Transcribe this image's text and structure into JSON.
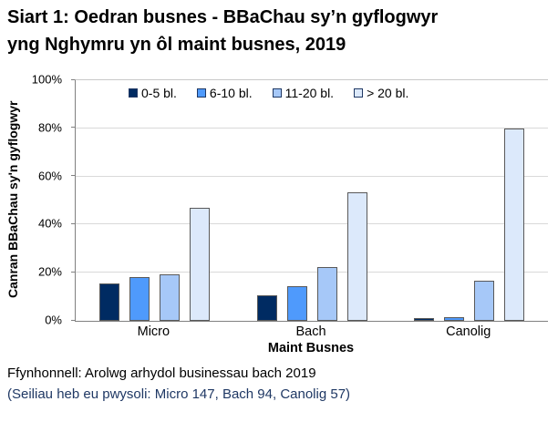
{
  "title": {
    "line1": "Siart 1: Oedran busnes - BBaChau sy’n gyflogwyr",
    "line2": "yng Nghymru yn ôl maint busnes, 2019"
  },
  "chart_data": {
    "type": "bar",
    "title": "Siart 1: Oedran busnes - BBaChau sy’n gyflogwyr yng Nghymru yn ôl maint busnes, 2019",
    "categories": [
      "Micro",
      "Bach",
      "Canolig"
    ],
    "series": [
      {
        "name": "0-5 bl.",
        "color": "#002b62",
        "values": [
          15.5,
          10.5,
          1
        ]
      },
      {
        "name": "6-10 bl.",
        "color": "#4f9afc",
        "values": [
          18,
          14.5,
          1.5
        ]
      },
      {
        "name": "11-20 bl.",
        "color": "#a6c8f8",
        "values": [
          19.5,
          22.5,
          16.5
        ]
      },
      {
        "name": "> 20 bl.",
        "color": "#dce9fb",
        "values": [
          47,
          53.5,
          80
        ]
      }
    ],
    "xlabel": "Maint Busnes",
    "ylabel": "Canran BBaChau sy'n gyflogwyr",
    "ylim": [
      0,
      100
    ],
    "yticks": [
      "0%",
      "20%",
      "40%",
      "60%",
      "80%",
      "100%"
    ],
    "grid": true,
    "legend_position": "top-inside",
    "colors": {
      "gridline": "#d9d9d9",
      "axis": "#808080",
      "bar_border": "#595959"
    }
  },
  "footer": {
    "line1": "Ffynhonnell: Arolwg arhydol businessau bach 2019",
    "line2": "(Seiliau heb eu pwysoli: Micro 147, Bach 94, Canolig 57)"
  }
}
